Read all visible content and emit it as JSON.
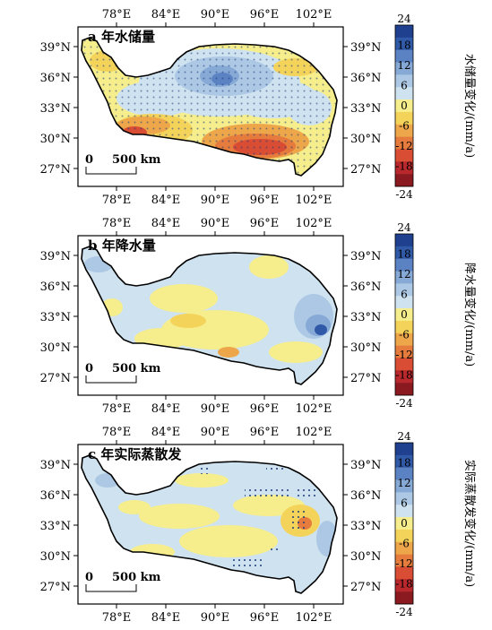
{
  "x_ticks": [
    "78°E",
    "84°E",
    "90°E",
    "96°E",
    "102°E"
  ],
  "y_ticks": [
    "39°N",
    "36°N",
    "33°N",
    "30°N",
    "27°N"
  ],
  "scale_bar": {
    "start": "0",
    "end": "500 km"
  },
  "colorbar": {
    "ticks": [
      "24",
      "18",
      "12",
      "6",
      "0",
      "-6",
      "-12",
      "-18",
      "-24"
    ],
    "colors": [
      "#1f3f8f",
      "#3059a8",
      "#5b83c3",
      "#86a9d6",
      "#acc8e4",
      "#cfe2ef",
      "#f6ee8c",
      "#f4d35a",
      "#eda74a",
      "#e57b3c",
      "#d94d34",
      "#b8282c",
      "#8a1a20"
    ]
  },
  "panels": [
    {
      "id": "a",
      "label": "a 年水储量",
      "colorbar_title": "水储量变化/(mm/a)",
      "stippling": "dense"
    },
    {
      "id": "b",
      "label": "b 年降水量",
      "colorbar_title": "降水量变化/(mm/a)",
      "stippling": "none"
    },
    {
      "id": "c",
      "label": "c 年实际蒸散发",
      "colorbar_title": "实际蒸散发变化/(mm/a)",
      "stippling": "sparse"
    }
  ]
}
